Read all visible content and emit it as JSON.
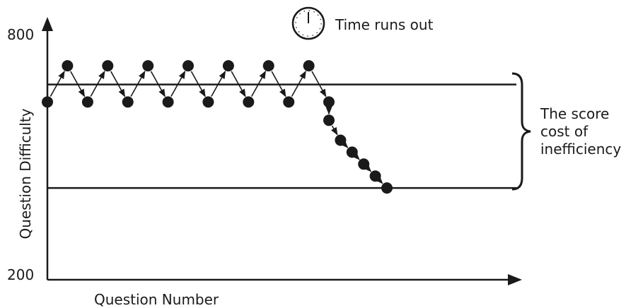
{
  "colors": {
    "ink": "#1a1a1a",
    "background": "#ffffff"
  },
  "chart_data": {
    "type": "line",
    "title": "",
    "xlabel": "Question Number",
    "ylabel": "Question Difficulty",
    "y_ticks": [
      "800",
      "200"
    ],
    "ylim": [
      200,
      800
    ],
    "grid": false,
    "x": [
      1,
      2,
      3,
      4,
      5,
      6,
      7,
      8,
      9,
      10,
      11,
      12,
      13,
      14,
      15,
      16,
      17,
      18,
      19,
      20,
      21
    ],
    "y": [
      636,
      727,
      636,
      727,
      636,
      727,
      636,
      727,
      636,
      727,
      636,
      727,
      636,
      727,
      636,
      590,
      540,
      510,
      480,
      450,
      420
    ],
    "reference_lines": [
      {
        "y": 680,
        "label": ""
      },
      {
        "y": 420,
        "label": ""
      }
    ],
    "annotations": {
      "timer_label": "Time runs out",
      "brace_label_lines": [
        "The score",
        "cost of",
        "inefficiency"
      ]
    }
  }
}
